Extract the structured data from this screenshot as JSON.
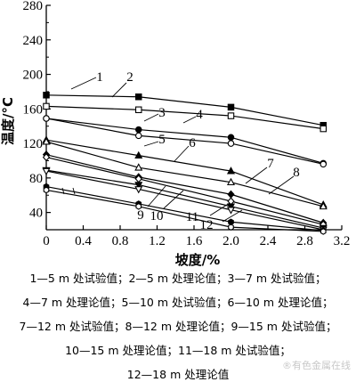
{
  "chart_data": {
    "type": "line",
    "title": "",
    "xlabel": "坡度/%",
    "ylabel": "温度/°C",
    "xlim": [
      0,
      3.2
    ],
    "ylim": [
      20,
      280
    ],
    "x_ticks": [
      "0",
      "0.4",
      "0.8",
      "1.2",
      "1.6",
      "2.0",
      "2.4",
      "2.8",
      "3.2"
    ],
    "y_ticks": [
      "40",
      "80",
      "120",
      "160",
      "200",
      "240",
      "280"
    ],
    "grid": false,
    "series": [
      {
        "name": "1",
        "marker": "filled-square",
        "x": [
          0,
          1.0,
          2.0,
          3.0
        ],
        "y": [
          176,
          174,
          162,
          141
        ]
      },
      {
        "name": "2",
        "marker": "open-square",
        "x": [
          0,
          1.0,
          2.0,
          3.0
        ],
        "y": [
          163,
          159,
          152,
          137
        ]
      },
      {
        "name": "3",
        "marker": "filled-circle",
        "x": [
          0,
          1.0,
          2.0,
          3.0
        ],
        "y": [
          149,
          136,
          127,
          97
        ]
      },
      {
        "name": "4",
        "marker": "open-circle",
        "x": [
          0,
          1.0,
          2.0,
          3.0
        ],
        "y": [
          149,
          129,
          120,
          96
        ]
      },
      {
        "name": "5",
        "marker": "filled-triangle",
        "x": [
          0,
          1.0,
          2.0,
          3.0
        ],
        "y": [
          124,
          106,
          88,
          49
        ]
      },
      {
        "name": "6",
        "marker": "open-triangle",
        "x": [
          0,
          1.0,
          2.0,
          3.0
        ],
        "y": [
          122,
          92,
          75,
          47
        ]
      },
      {
        "name": "7",
        "marker": "filled-diamond",
        "x": [
          0,
          1.0,
          2.0,
          3.0
        ],
        "y": [
          107,
          81,
          61,
          28
        ]
      },
      {
        "name": "8",
        "marker": "open-diamond",
        "x": [
          0,
          1.0,
          2.0,
          3.0
        ],
        "y": [
          104,
          79,
          53,
          26
        ]
      },
      {
        "name": "9",
        "marker": "filled-down-triangle",
        "x": [
          0,
          1.0,
          2.0,
          3.0
        ],
        "y": [
          89,
          72,
          47,
          22
        ]
      },
      {
        "name": "10",
        "marker": "open-down-triangle",
        "x": [
          0,
          1.0,
          2.0,
          3.0
        ],
        "y": [
          88,
          67,
          43,
          20
        ]
      },
      {
        "name": "11",
        "marker": "filled-hexagon",
        "x": [
          0,
          1.0,
          2.0,
          3.0
        ],
        "y": [
          70,
          50,
          29,
          19
        ]
      },
      {
        "name": "12",
        "marker": "open-hexagon",
        "x": [
          0,
          1.0,
          2.0,
          3.0
        ],
        "y": [
          66,
          47,
          23,
          18
        ]
      }
    ],
    "series_labels": [
      "1",
      "2",
      "3",
      "4",
      "5",
      "6",
      "7",
      "8",
      "9",
      "10",
      "11",
      "12"
    ],
    "legend": [
      "1—5 m 处试验值；2—5 m 处理论值；3—7 m 处试验值；",
      "4—7 m 处理论值；5—10 m 处试验值；6—10 m 处理论值；",
      "7—12 m 处试验值；8—12 m 处理论值；9—15 m 处试验值；",
      "10—15 m 处理论值；11—18 m 处试验值；",
      "12—18 m 处理论值"
    ]
  },
  "watermark": "®有色金属在线"
}
